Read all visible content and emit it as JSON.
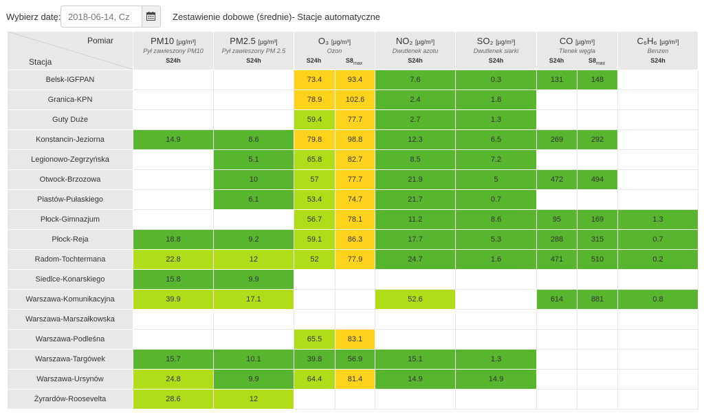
{
  "toolbar": {
    "date_label": "Wybierz datę:",
    "date_value": "2018-06-14, Cz",
    "calendar_icon": "calendar-icon",
    "title": "Zestawienie dobowe (średnie)- Stacje automatyczne"
  },
  "colors": {
    "green": "#57b52e",
    "light_green": "#b0dd1a",
    "yellow": "#ffd21c",
    "header_gray": "#e8e8e8"
  },
  "header": {
    "pomiar": "Pomiar",
    "stacja": "Stacja",
    "pollutants": {
      "pm10": {
        "name": "PM10",
        "unit": "[µg/m³]",
        "desc": "Pył zawieszony PM10",
        "avg": "S24h"
      },
      "pm25": {
        "name": "PM2.5",
        "unit": "[µg/m³]",
        "desc": "Pył zawieszony PM 2.5",
        "avg": "S24h"
      },
      "o3": {
        "name": "O₃",
        "unit": "[µg/m³]",
        "desc": "Ozon",
        "avg1": "S24h",
        "avg2": "S8",
        "avg2_sub": "max"
      },
      "no2": {
        "name": "NO₂",
        "unit": "[µg/m³]",
        "desc": "Dwutlenek azotu",
        "avg": "S24h"
      },
      "so2": {
        "name": "SO₂",
        "unit": "[µg/m³]",
        "desc": "Dwutlenek siarki",
        "avg": "S24h"
      },
      "co": {
        "name": "CO",
        "unit": "[µg/m³]",
        "desc": "Tlenek węgla",
        "avg1": "S24h",
        "avg2": "S8",
        "avg2_sub": "max"
      },
      "c6h6": {
        "name": "C₆H₆",
        "unit": "[µg/m³]",
        "desc": "Benzen",
        "avg": "S24h"
      }
    }
  },
  "rows": [
    {
      "station": "Belsk-IGFPAN",
      "vals": [
        "",
        "",
        "73.4",
        "93.4",
        "7.6",
        "0.3",
        "131",
        "148",
        ""
      ],
      "cls": [
        "e",
        "e",
        "y",
        "y",
        "g",
        "g",
        "g",
        "g",
        "e"
      ]
    },
    {
      "station": "Granica-KPN",
      "vals": [
        "",
        "",
        "78.9",
        "102.6",
        "2.4",
        "1.8",
        "",
        "",
        ""
      ],
      "cls": [
        "e",
        "e",
        "y",
        "y",
        "g",
        "g",
        "e",
        "e",
        "e"
      ]
    },
    {
      "station": "Guty Duże",
      "vals": [
        "",
        "",
        "59.4",
        "77.7",
        "2.7",
        "1.3",
        "",
        "",
        ""
      ],
      "cls": [
        "e",
        "e",
        "lg",
        "y",
        "g",
        "g",
        "e",
        "e",
        "e"
      ]
    },
    {
      "station": "Konstancin-Jeziorna",
      "vals": [
        "14.9",
        "8.6",
        "79.8",
        "98.8",
        "12.3",
        "6.5",
        "269",
        "292",
        ""
      ],
      "cls": [
        "g",
        "g",
        "y",
        "y",
        "g",
        "g",
        "g",
        "g",
        "e"
      ]
    },
    {
      "station": "Legionowo-Zegrzyńska",
      "vals": [
        "",
        "5.1",
        "65.8",
        "82.7",
        "8.5",
        "7.2",
        "",
        "",
        ""
      ],
      "cls": [
        "e",
        "g",
        "lg",
        "y",
        "g",
        "g",
        "e",
        "e",
        "e"
      ]
    },
    {
      "station": "Otwock-Brzozowa",
      "vals": [
        "",
        "10",
        "57",
        "77.7",
        "21.9",
        "5",
        "472",
        "494",
        ""
      ],
      "cls": [
        "e",
        "g",
        "lg",
        "y",
        "g",
        "g",
        "g",
        "g",
        "e"
      ]
    },
    {
      "station": "Piastów-Pułaskiego",
      "vals": [
        "",
        "6.1",
        "53.4",
        "74.7",
        "21.7",
        "0.7",
        "",
        "",
        ""
      ],
      "cls": [
        "e",
        "g",
        "lg",
        "y",
        "g",
        "g",
        "e",
        "e",
        "e"
      ]
    },
    {
      "station": "Płock-Gimnazjum",
      "vals": [
        "",
        "",
        "56.7",
        "78.1",
        "11.2",
        "8.6",
        "95",
        "169",
        "1.3"
      ],
      "cls": [
        "e",
        "e",
        "lg",
        "y",
        "g",
        "g",
        "g",
        "g",
        "g"
      ]
    },
    {
      "station": "Płock-Reja",
      "vals": [
        "18.8",
        "9.2",
        "59.1",
        "86.3",
        "17.7",
        "5.3",
        "288",
        "315",
        "0.7"
      ],
      "cls": [
        "g",
        "g",
        "lg",
        "y",
        "g",
        "g",
        "g",
        "g",
        "g"
      ]
    },
    {
      "station": "Radom-Tochtermana",
      "vals": [
        "22.8",
        "12",
        "52",
        "77.9",
        "24.7",
        "1.6",
        "471",
        "510",
        "0.2"
      ],
      "cls": [
        "lg",
        "lg",
        "lg",
        "y",
        "g",
        "g",
        "g",
        "g",
        "g"
      ]
    },
    {
      "station": "Siedlce-Konarskiego",
      "vals": [
        "15.8",
        "9.9",
        "",
        "",
        "",
        "",
        "",
        "",
        ""
      ],
      "cls": [
        "g",
        "g",
        "e",
        "e",
        "e",
        "e",
        "e",
        "e",
        "e"
      ]
    },
    {
      "station": "Warszawa-Komunikacyjna",
      "vals": [
        "39.9",
        "17.1",
        "",
        "",
        "52.6",
        "",
        "614",
        "881",
        "0.8"
      ],
      "cls": [
        "lg",
        "lg",
        "e",
        "e",
        "lg",
        "e",
        "g",
        "g",
        "g"
      ]
    },
    {
      "station": "Warszawa-Marszałkowska",
      "vals": [
        "",
        "",
        "",
        "",
        "",
        "",
        "",
        "",
        ""
      ],
      "cls": [
        "e",
        "e",
        "e",
        "e",
        "e",
        "e",
        "e",
        "e",
        "e"
      ]
    },
    {
      "station": "Warszawa-Podleśna",
      "vals": [
        "",
        "",
        "65.5",
        "83.1",
        "",
        "",
        "",
        "",
        ""
      ],
      "cls": [
        "e",
        "e",
        "lg",
        "y",
        "e",
        "e",
        "e",
        "e",
        "e"
      ]
    },
    {
      "station": "Warszawa-Targówek",
      "vals": [
        "15.7",
        "10.1",
        "39.8",
        "56.9",
        "15.1",
        "1.3",
        "",
        "",
        ""
      ],
      "cls": [
        "g",
        "g",
        "g",
        "g",
        "g",
        "g",
        "e",
        "e",
        "e"
      ]
    },
    {
      "station": "Warszawa-Ursynów",
      "vals": [
        "24.8",
        "9.9",
        "64.4",
        "81.4",
        "14.9",
        "14.9",
        "",
        "",
        ""
      ],
      "cls": [
        "lg",
        "g",
        "lg",
        "y",
        "g",
        "g",
        "e",
        "e",
        "e"
      ]
    },
    {
      "station": "Żyrardów-Roosevelta",
      "vals": [
        "28.6",
        "12",
        "",
        "",
        "",
        "",
        "",
        "",
        ""
      ],
      "cls": [
        "lg",
        "lg",
        "e",
        "e",
        "e",
        "e",
        "e",
        "e",
        "e"
      ]
    }
  ]
}
